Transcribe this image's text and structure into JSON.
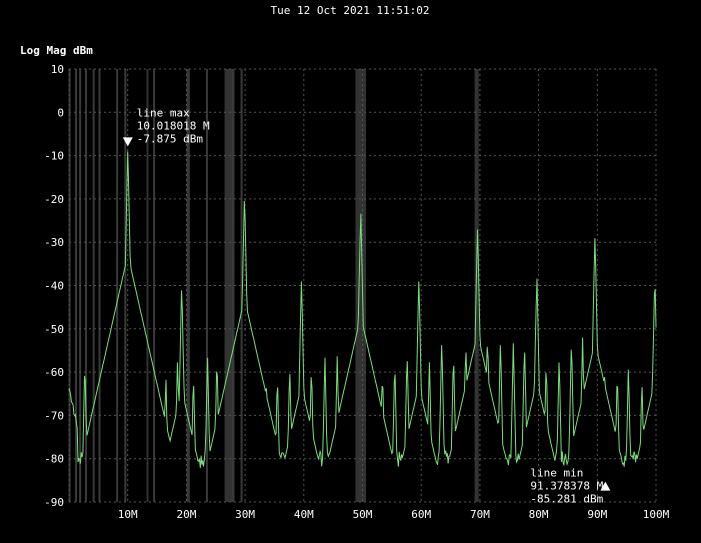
{
  "timestamp": "Tue 12 Oct 2021 11:51:02",
  "chart_data": {
    "type": "line",
    "ylabel": "Log Mag dBm",
    "xlabel": "",
    "xlim": [
      0,
      100
    ],
    "ylim": [
      -90,
      10
    ],
    "x_unit": "MHz",
    "x_ticks": [
      10,
      20,
      30,
      40,
      50,
      60,
      70,
      80,
      90,
      100
    ],
    "x_tick_labels": [
      "10M",
      "20M",
      "30M",
      "40M",
      "50M",
      "60M",
      "70M",
      "80M",
      "90M",
      "100M"
    ],
    "y_ticks": [
      10,
      0,
      -10,
      -20,
      -30,
      -40,
      -50,
      -60,
      -70,
      -80,
      -90
    ],
    "y_tick_labels": [
      "10",
      "0",
      "-10",
      "-20",
      "-30",
      "-40",
      "-50",
      "-60",
      "-70",
      "-80",
      "-90"
    ],
    "grid": true,
    "line_color": "#7ddc7d",
    "marker_color": "#ffffff",
    "noise_floor_dbm": -80,
    "series": [
      {
        "peaks": [
          {
            "x": 0.3,
            "y": -64
          },
          {
            "x": 2.7,
            "y": -57
          },
          {
            "x": 4.9,
            "y": -71
          },
          {
            "x": 6.2,
            "y": -69
          },
          {
            "x": 7.9,
            "y": -60
          },
          {
            "x": 10.018,
            "y": -7.875
          },
          {
            "x": 12.1,
            "y": -59
          },
          {
            "x": 14.6,
            "y": -62
          },
          {
            "x": 16.5,
            "y": -60
          },
          {
            "x": 18.5,
            "y": -56
          },
          {
            "x": 19.2,
            "y": -39
          },
          {
            "x": 21.2,
            "y": -60
          },
          {
            "x": 23.6,
            "y": -56
          },
          {
            "x": 25.2,
            "y": -56
          },
          {
            "x": 27.6,
            "y": -56
          },
          {
            "x": 29.2,
            "y": -63
          },
          {
            "x": 29.9,
            "y": -18
          },
          {
            "x": 31.2,
            "y": -60
          },
          {
            "x": 33.6,
            "y": -63
          },
          {
            "x": 35.5,
            "y": -60
          },
          {
            "x": 37.6,
            "y": -58
          },
          {
            "x": 39.6,
            "y": -38
          },
          {
            "x": 41.3,
            "y": -58
          },
          {
            "x": 43.6,
            "y": -56
          },
          {
            "x": 45.7,
            "y": -56
          },
          {
            "x": 47.6,
            "y": -60
          },
          {
            "x": 49.7,
            "y": -22
          },
          {
            "x": 51.4,
            "y": -57
          },
          {
            "x": 53.4,
            "y": -59
          },
          {
            "x": 55.5,
            "y": -57
          },
          {
            "x": 57.6,
            "y": -55
          },
          {
            "x": 59.6,
            "y": -38
          },
          {
            "x": 61.4,
            "y": -57
          },
          {
            "x": 63.5,
            "y": -52
          },
          {
            "x": 65.5,
            "y": -55
          },
          {
            "x": 67.6,
            "y": -53
          },
          {
            "x": 69.6,
            "y": -26
          },
          {
            "x": 71.3,
            "y": -51
          },
          {
            "x": 73.5,
            "y": -52
          },
          {
            "x": 75.7,
            "y": -53
          },
          {
            "x": 77.6,
            "y": -53
          },
          {
            "x": 79.7,
            "y": -37
          },
          {
            "x": 81.3,
            "y": -57
          },
          {
            "x": 83.5,
            "y": -56
          },
          {
            "x": 85.6,
            "y": -52
          },
          {
            "x": 87.5,
            "y": -52
          },
          {
            "x": 89.6,
            "y": -28
          },
          {
            "x": 91.2,
            "y": -58
          },
          {
            "x": 93.4,
            "y": -59
          },
          {
            "x": 95.3,
            "y": -58
          },
          {
            "x": 97.6,
            "y": -61
          },
          {
            "x": 99.8,
            "y": -37
          }
        ]
      }
    ],
    "shaded_bands": [
      {
        "x": [
          13.2,
          13.5
        ]
      },
      {
        "x": [
          20.2,
          20.6
        ]
      },
      {
        "x": [
          26.5,
          28.2
        ]
      },
      {
        "x": [
          48.8,
          50.6
        ]
      },
      {
        "x": [
          69.1,
          69.8
        ]
      }
    ],
    "vertical_lines": [
      0.1,
      1.2,
      1.9,
      2.9,
      4.2,
      5.2,
      8.2,
      9.6,
      14.5,
      20.2,
      23.5,
      27.9,
      29.4
    ],
    "annotations": [
      {
        "label": "line max",
        "x_text": "10.018018 M",
        "y_text": "-7.875 dBm",
        "x": 10.018,
        "y": -7.875,
        "marker": "down"
      },
      {
        "label": "line min",
        "x_text": "91.378378 M",
        "y_text": "-85.281 dBm",
        "x": 91.378,
        "y": -85.281,
        "marker": "up"
      }
    ]
  }
}
